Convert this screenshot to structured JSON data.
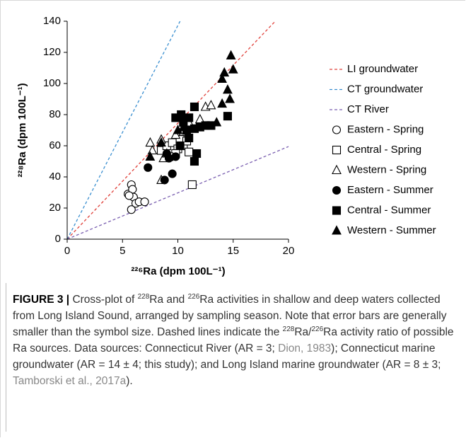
{
  "chart_data": {
    "type": "scatter",
    "xlabel": "²²⁶Ra (dpm 100L⁻¹)",
    "ylabel": "²²⁸Ra (dpm 100L⁻¹)",
    "xlim": [
      0,
      20
    ],
    "xticks": [
      0,
      5,
      10,
      15,
      20
    ],
    "ylim": [
      0,
      140
    ],
    "yticks": [
      0,
      20,
      40,
      60,
      80,
      100,
      120,
      140
    ],
    "grid": false,
    "legend": "right",
    "series": [
      {
        "name": "LI groundwater",
        "type": "line",
        "line_style": "dashed",
        "color": "#e0403a",
        "x": [
          0,
          18.8
        ],
        "values": [
          0,
          140
        ]
      },
      {
        "name": "CT groundwater",
        "type": "line",
        "line_style": "dashed",
        "color": "#3a8fd0",
        "x": [
          0,
          10.2
        ],
        "values": [
          0,
          140
        ]
      },
      {
        "name": "CT River",
        "type": "line",
        "line_style": "dashed",
        "color": "#7a5fb0",
        "x": [
          0,
          20
        ],
        "values": [
          0,
          59.5
        ]
      },
      {
        "name": "Eastern - Spring",
        "marker": "circle",
        "filled": false,
        "color": "#000000",
        "x": [
          5.5,
          5.8,
          5.9,
          6.0,
          6.2,
          5.8,
          6.5,
          7.0,
          5.6
        ],
        "values": [
          29,
          35,
          32,
          27,
          23,
          19,
          24,
          24,
          28
        ]
      },
      {
        "name": "Central - Spring",
        "marker": "square",
        "filled": false,
        "color": "#000000",
        "x": [
          8.5,
          9.0,
          9.5,
          10.0,
          10.2,
          10.5,
          11.0,
          11.3,
          9.8,
          10.8,
          9.2
        ],
        "values": [
          57,
          60,
          62,
          58,
          64,
          60,
          56,
          35,
          55,
          63,
          53
        ]
      },
      {
        "name": "Western - Spring",
        "marker": "triangle",
        "filled": false,
        "color": "#000000",
        "x": [
          7.5,
          7.7,
          8.5,
          8.7,
          8.5,
          9.0,
          11.0,
          12.0,
          12.5,
          13.0,
          10.5,
          9.8
        ],
        "values": [
          62,
          57,
          64,
          52,
          38,
          55,
          75,
          77,
          85,
          86,
          69,
          67
        ]
      },
      {
        "name": "Eastern - Summer",
        "marker": "circle",
        "filled": true,
        "color": "#000000",
        "x": [
          7.3,
          8.8,
          9.5,
          9.2,
          9.8,
          9.0
        ],
        "values": [
          46,
          38,
          42,
          52,
          53,
          55
        ]
      },
      {
        "name": "Central - Summer",
        "marker": "square",
        "filled": true,
        "color": "#000000",
        "x": [
          9.8,
          10.3,
          10.5,
          10.8,
          11.0,
          11.5,
          11.7,
          11.5,
          12.0,
          12.5,
          13.0,
          14.5,
          10.2,
          11.0,
          11.5
        ],
        "values": [
          78,
          80,
          75,
          70,
          78,
          85,
          55,
          50,
          72,
          73,
          73,
          79,
          60,
          65,
          71
        ]
      },
      {
        "name": "Western - Summer",
        "marker": "triangle",
        "filled": true,
        "color": "#000000",
        "x": [
          7.5,
          8.5,
          10.0,
          10.5,
          13.5,
          14.0,
          14.0,
          14.2,
          14.5,
          14.7,
          14.8,
          15.0,
          10.0
        ],
        "values": [
          53,
          62,
          70,
          72,
          75,
          87,
          103,
          107,
          96,
          90,
          118,
          109,
          78
        ]
      }
    ]
  },
  "caption": [
    {
      "text": "FIGURE 3 | ",
      "format": "bold"
    },
    {
      "text": "Cross-plot of "
    },
    {
      "text": "228",
      "format": "sup"
    },
    {
      "text": "Ra and "
    },
    {
      "text": "226",
      "format": "sup"
    },
    {
      "text": "Ra activities in shallow and deep waters collected from Long Island Sound, arranged by sampling season. Note that error bars are generally smaller than the symbol size. Dashed lines indicate the "
    },
    {
      "text": "228",
      "format": "sup"
    },
    {
      "text": "Ra/"
    },
    {
      "text": "226",
      "format": "sup"
    },
    {
      "text": "Ra activity ratio of possible Ra sources. Data sources: Connecticut River (AR = 3; "
    },
    {
      "text": "Dion, 1983",
      "format": "link"
    },
    {
      "text": "); Connecticut marine groundwater (AR = 14 ± 4; this study); and Long Island marine groundwater (AR = 8 ± 3; "
    },
    {
      "text": "Tamborski et al., 2017a",
      "format": "link"
    },
    {
      "text": ")."
    }
  ]
}
